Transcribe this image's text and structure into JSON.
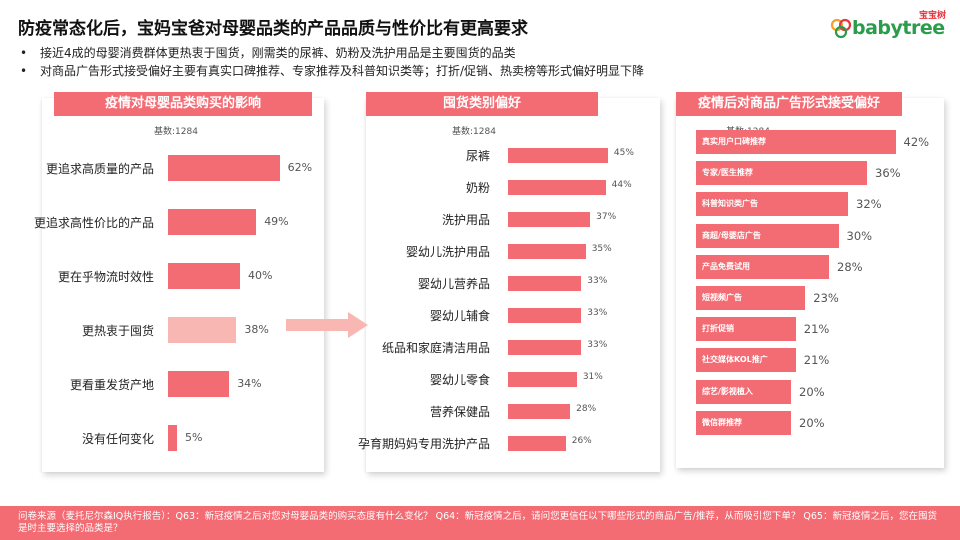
{
  "title": "防疫常态化后，宝妈宝爸对母婴品类的产品品质与性价比有更高要求",
  "logo": {
    "text_prefix": "b",
    "text_mid": "aby",
    "text_o1": "t",
    "text_rest": "ree",
    "full": "babytree",
    "sub": "宝宝树"
  },
  "bullets": [
    "接近4成的母婴消费群体更热衷于囤货，刚需类的尿裤、奶粉及洗护用品是主要囤货的品类",
    "对商品广告形式接受偏好主要有真实口碑推荐、专家推荐及科普知识类等；打折/促销、热卖榜等形式偏好明显下降"
  ],
  "footer": "问卷来源（麦托尼尔森IQ执行报告）：Q63：新冠疫情之后对您对母婴品类的购买态度有什么变化？ Q64：新冠疫情之后，请问您更信任以下哪些形式的商品广告/推荐，从而吸引您下单？ Q65：新冠疫情之后，您在囤货是时主要选择的品类是？",
  "colors": {
    "accent": "#f36b73",
    "accent_light": "#f8b7b3"
  },
  "chart_data": [
    {
      "type": "bar",
      "orientation": "horizontal",
      "title": "疫情对母婴品类购买的影响",
      "base": "基数:1284",
      "categories": [
        "更追求高质量的产品",
        "更追求高性价比的产品",
        "更在乎物流时效性",
        "更热衷于囤货",
        "更看重发货产地",
        "没有任何变化"
      ],
      "values": [
        62,
        49,
        40,
        38,
        34,
        5
      ],
      "labels": [
        "62%",
        "49%",
        "40%",
        "38%",
        "34%",
        "5%"
      ],
      "highlight": [
        false,
        false,
        false,
        true,
        false,
        false
      ],
      "xlim": [
        0,
        100
      ]
    },
    {
      "type": "bar",
      "orientation": "horizontal",
      "title": "囤货类别偏好",
      "base": "基数:1284",
      "categories": [
        "尿裤",
        "奶粉",
        "洗护用品",
        "婴幼儿洗护用品",
        "婴幼儿营养品",
        "婴幼儿辅食",
        "纸品和家庭清洁用品",
        "婴幼儿零食",
        "营养保健品",
        "孕育期妈妈专用洗护产品"
      ],
      "values": [
        45,
        44,
        37,
        35,
        33,
        33,
        33,
        31,
        28,
        26
      ],
      "labels": [
        "45%",
        "44%",
        "37%",
        "35%",
        "33%",
        "33%",
        "33%",
        "31%",
        "28%",
        "26%"
      ],
      "xlim": [
        0,
        100
      ]
    },
    {
      "type": "bar",
      "orientation": "horizontal",
      "title": "疫情后对商品广告形式接受偏好",
      "base": "基数:1284",
      "categories": [
        "真实用户口碑推荐",
        "专家/医生推荐",
        "科普知识类广告",
        "商超/母婴店广告",
        "产品免费试用",
        "短视频广告",
        "打折促销",
        "社交媒体KOL推广",
        "综艺/影视植入",
        "微信群推荐"
      ],
      "values": [
        42,
        36,
        32,
        30,
        28,
        23,
        21,
        21,
        20,
        20
      ],
      "labels": [
        "42%",
        "36%",
        "32%",
        "30%",
        "28%",
        "23%",
        "21%",
        "21%",
        "20%",
        "20%"
      ],
      "xlim": [
        0,
        100
      ]
    }
  ]
}
